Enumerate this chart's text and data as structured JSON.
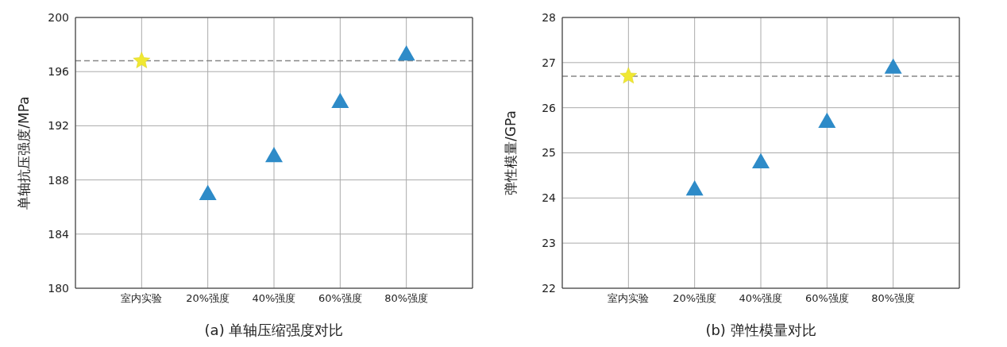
{
  "chart_data": [
    {
      "type": "scatter",
      "title": "(a) 单轴压缩强度对比",
      "ylabel": "单轴抗压强度/MPa",
      "categories": [
        "室内实验",
        "20%强度",
        "40%强度",
        "60%强度",
        "80%强度"
      ],
      "ylim": [
        180,
        200
      ],
      "yticks": [
        180,
        184,
        188,
        192,
        196,
        200
      ],
      "grid": true,
      "series": [
        {
          "color": "#f0e832",
          "marker": "star",
          "values": [
            196.8,
            null,
            null,
            null,
            null
          ]
        },
        {
          "color": "#2e8bc8",
          "marker": "triangle",
          "values": [
            null,
            187.0,
            189.8,
            193.8,
            197.3
          ]
        }
      ],
      "ref_lines": [
        {
          "axis": "y",
          "value": 196.8,
          "color": "#888888",
          "line_style": "dashed"
        }
      ]
    },
    {
      "type": "scatter",
      "title": "(b) 弹性模量对比",
      "ylabel": "弹性模量/GPa",
      "categories": [
        "室内实验",
        "20%强度",
        "40%强度",
        "60%强度",
        "80%强度"
      ],
      "ylim": [
        22,
        28
      ],
      "yticks": [
        22,
        23,
        24,
        25,
        26,
        27,
        28
      ],
      "grid": true,
      "series": [
        {
          "color": "#f0e832",
          "marker": "star",
          "values": [
            26.7,
            null,
            null,
            null,
            null
          ]
        },
        {
          "color": "#2e8bc8",
          "marker": "triangle",
          "values": [
            null,
            24.2,
            24.8,
            25.7,
            26.9
          ]
        }
      ],
      "ref_lines": [
        {
          "axis": "y",
          "value": 26.7,
          "color": "#888888",
          "line_style": "dashed"
        }
      ]
    }
  ]
}
